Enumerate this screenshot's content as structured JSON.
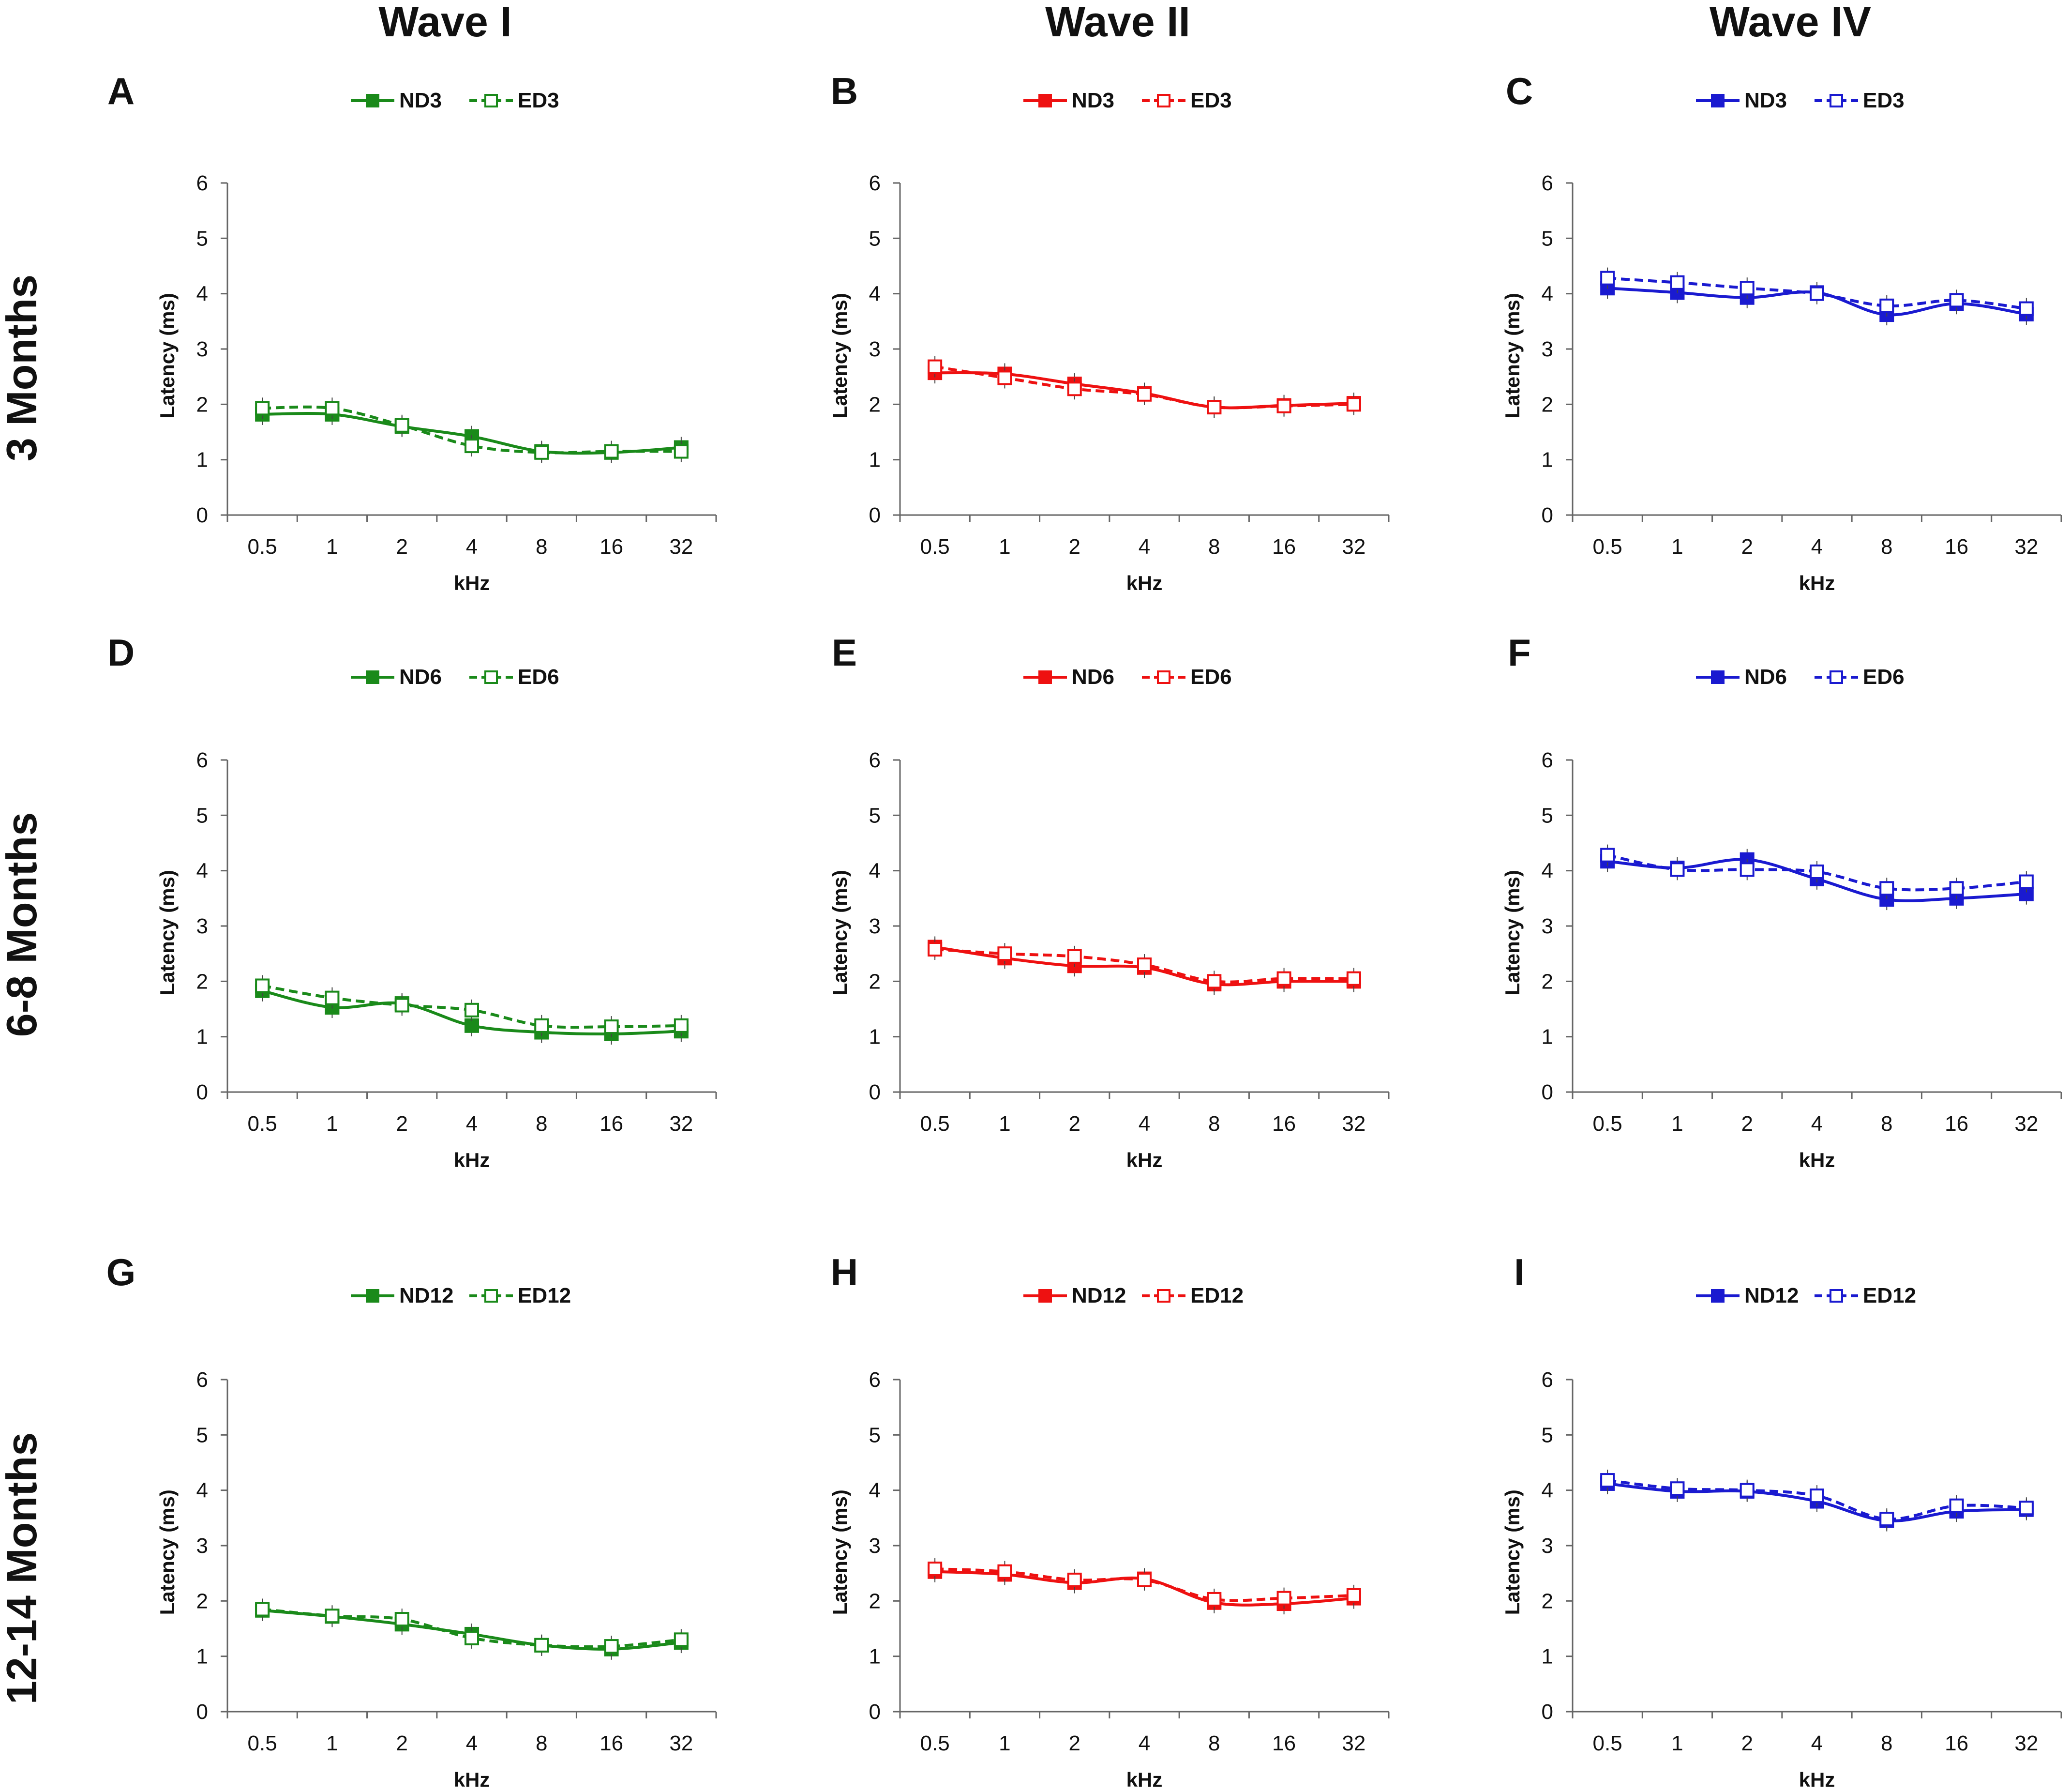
{
  "column_titles": [
    "Wave I",
    "Wave II",
    "Wave IV"
  ],
  "row_titles": [
    "3 Months",
    "6-8 Months",
    "12-14 Months"
  ],
  "colors": {
    "wave1": "#1a8a1a",
    "wave2": "#ee1111",
    "wave4": "#1a1ad0"
  },
  "chart_data": [
    {
      "panel": "A",
      "type": "line",
      "color": "#1a8a1a",
      "categories": [
        "0.5",
        "1",
        "2",
        "4",
        "8",
        "16",
        "32"
      ],
      "xlabel": "kHz",
      "ylabel": "Latency (ms)",
      "ylim": [
        0,
        6
      ],
      "yticks": [
        0,
        1,
        2,
        3,
        4,
        5,
        6
      ],
      "legend_position": "top-center",
      "series": [
        {
          "name": "ND3",
          "dashed": false,
          "values": [
            1.82,
            1.82,
            1.6,
            1.42,
            1.15,
            1.13,
            1.22
          ]
        },
        {
          "name": "ED3",
          "dashed": true,
          "values": [
            1.93,
            1.93,
            1.62,
            1.25,
            1.13,
            1.15,
            1.15
          ]
        }
      ]
    },
    {
      "panel": "B",
      "type": "line",
      "color": "#ee1111",
      "categories": [
        "0.5",
        "1",
        "2",
        "4",
        "8",
        "16",
        "32"
      ],
      "xlabel": "kHz",
      "ylabel": "Latency (ms)",
      "ylim": [
        0,
        6
      ],
      "yticks": [
        0,
        1,
        2,
        3,
        4,
        5,
        6
      ],
      "legend_position": "top-center",
      "series": [
        {
          "name": "ND3",
          "dashed": false,
          "values": [
            2.57,
            2.55,
            2.37,
            2.2,
            1.95,
            1.98,
            2.02
          ]
        },
        {
          "name": "ED3",
          "dashed": true,
          "values": [
            2.68,
            2.48,
            2.28,
            2.18,
            1.95,
            1.97,
            2.0
          ]
        }
      ]
    },
    {
      "panel": "C",
      "type": "line",
      "color": "#1a1ad0",
      "categories": [
        "0.5",
        "1",
        "2",
        "4",
        "8",
        "16",
        "32"
      ],
      "xlabel": "kHz",
      "ylabel": "Latency (ms)",
      "ylim": [
        0,
        6
      ],
      "yticks": [
        0,
        1,
        2,
        3,
        4,
        5,
        6
      ],
      "legend_position": "top-center",
      "series": [
        {
          "name": "ND3",
          "dashed": false,
          "values": [
            4.1,
            4.02,
            3.93,
            4.02,
            3.62,
            3.82,
            3.63
          ]
        },
        {
          "name": "ED3",
          "dashed": true,
          "values": [
            4.28,
            4.2,
            4.1,
            4.0,
            3.78,
            3.88,
            3.73
          ]
        }
      ]
    },
    {
      "panel": "D",
      "type": "line",
      "color": "#1a8a1a",
      "categories": [
        "0.5",
        "1",
        "2",
        "4",
        "8",
        "16",
        "32"
      ],
      "xlabel": "kHz",
      "ylabel": "Latency (ms)",
      "ylim": [
        0,
        6
      ],
      "yticks": [
        0,
        1,
        2,
        3,
        4,
        5,
        6
      ],
      "legend_position": "top-center",
      "series": [
        {
          "name": "ND6",
          "dashed": false,
          "values": [
            1.83,
            1.53,
            1.6,
            1.2,
            1.08,
            1.05,
            1.1
          ]
        },
        {
          "name": "ED6",
          "dashed": true,
          "values": [
            1.92,
            1.7,
            1.57,
            1.48,
            1.2,
            1.18,
            1.2
          ]
        }
      ]
    },
    {
      "panel": "E",
      "type": "line",
      "color": "#ee1111",
      "categories": [
        "0.5",
        "1",
        "2",
        "4",
        "8",
        "16",
        "32"
      ],
      "xlabel": "kHz",
      "ylabel": "Latency (ms)",
      "ylim": [
        0,
        6
      ],
      "yticks": [
        0,
        1,
        2,
        3,
        4,
        5,
        6
      ],
      "legend_position": "top-center",
      "series": [
        {
          "name": "ND6",
          "dashed": false,
          "values": [
            2.62,
            2.42,
            2.28,
            2.25,
            1.95,
            2.0,
            2.0
          ]
        },
        {
          "name": "ED6",
          "dashed": true,
          "values": [
            2.58,
            2.5,
            2.45,
            2.3,
            2.0,
            2.05,
            2.05
          ]
        }
      ]
    },
    {
      "panel": "F",
      "type": "line",
      "color": "#1a1ad0",
      "categories": [
        "0.5",
        "1",
        "2",
        "4",
        "8",
        "16",
        "32"
      ],
      "xlabel": "kHz",
      "ylabel": "Latency (ms)",
      "ylim": [
        0,
        6
      ],
      "yticks": [
        0,
        1,
        2,
        3,
        4,
        5,
        6
      ],
      "legend_position": "top-center",
      "series": [
        {
          "name": "ND6",
          "dashed": false,
          "values": [
            4.17,
            4.05,
            4.2,
            3.85,
            3.48,
            3.5,
            3.58
          ]
        },
        {
          "name": "ED6",
          "dashed": true,
          "values": [
            4.28,
            4.02,
            4.02,
            3.98,
            3.68,
            3.68,
            3.8
          ]
        }
      ]
    },
    {
      "panel": "G",
      "type": "line",
      "color": "#1a8a1a",
      "categories": [
        "0.5",
        "1",
        "2",
        "4",
        "8",
        "16",
        "32"
      ],
      "xlabel": "kHz",
      "ylabel": "Latency (ms)",
      "ylim": [
        0,
        6
      ],
      "yticks": [
        0,
        1,
        2,
        3,
        4,
        5,
        6
      ],
      "legend_position": "top-center",
      "series": [
        {
          "name": "ND12",
          "dashed": false,
          "values": [
            1.83,
            1.72,
            1.58,
            1.4,
            1.2,
            1.13,
            1.25
          ]
        },
        {
          "name": "ED12",
          "dashed": true,
          "values": [
            1.85,
            1.73,
            1.67,
            1.33,
            1.2,
            1.18,
            1.3
          ]
        }
      ]
    },
    {
      "panel": "H",
      "type": "line",
      "color": "#ee1111",
      "categories": [
        "0.5",
        "1",
        "2",
        "4",
        "8",
        "16",
        "32"
      ],
      "xlabel": "kHz",
      "ylabel": "Latency (ms)",
      "ylim": [
        0,
        6
      ],
      "yticks": [
        0,
        1,
        2,
        3,
        4,
        5,
        6
      ],
      "legend_position": "top-center",
      "series": [
        {
          "name": "ND12",
          "dashed": false,
          "values": [
            2.53,
            2.48,
            2.33,
            2.4,
            1.97,
            1.95,
            2.05
          ]
        },
        {
          "name": "ED12",
          "dashed": true,
          "values": [
            2.58,
            2.53,
            2.38,
            2.38,
            2.03,
            2.05,
            2.1
          ]
        }
      ]
    },
    {
      "panel": "I",
      "type": "line",
      "color": "#1a1ad0",
      "categories": [
        "0.5",
        "1",
        "2",
        "4",
        "8",
        "16",
        "32"
      ],
      "xlabel": "kHz",
      "ylabel": "Latency (ms)",
      "ylim": [
        0,
        6
      ],
      "yticks": [
        0,
        1,
        2,
        3,
        4,
        5,
        6
      ],
      "legend_position": "top-center",
      "series": [
        {
          "name": "ND12",
          "dashed": false,
          "values": [
            4.12,
            3.98,
            3.98,
            3.8,
            3.45,
            3.62,
            3.65
          ]
        },
        {
          "name": "ED12",
          "dashed": true,
          "values": [
            4.18,
            4.03,
            4.0,
            3.9,
            3.48,
            3.72,
            3.68
          ]
        }
      ]
    }
  ]
}
